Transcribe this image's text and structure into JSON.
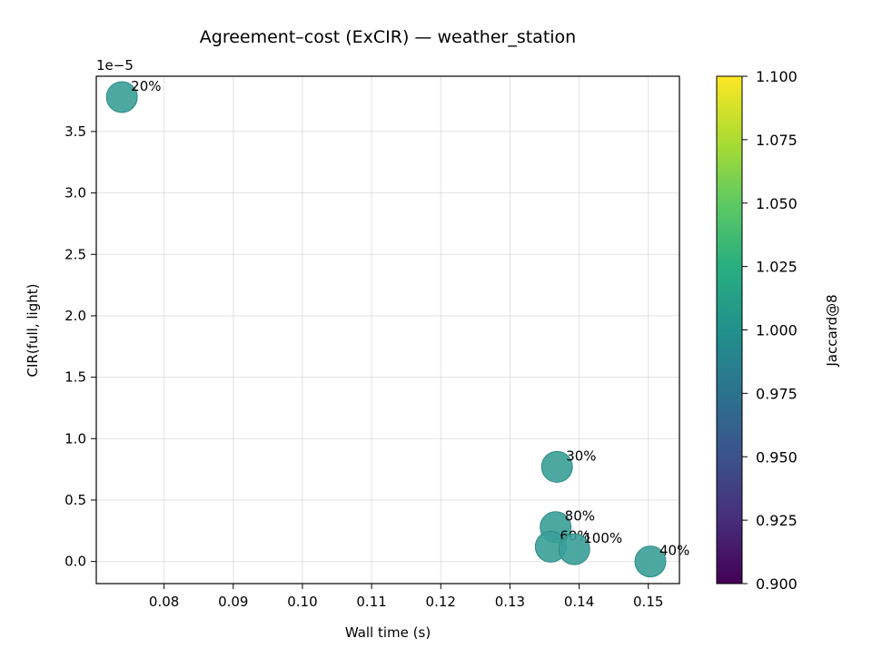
{
  "chart_data": {
    "type": "scatter",
    "title": "Agreement–cost (ExCIR) — weather_station",
    "xlabel": "Wall time (s)",
    "ylabel": "CIR(full, light)",
    "y_offset_label": "1e−5",
    "xlim": [
      0.0702,
      0.1545
    ],
    "ylim": [
      -0.18,
      3.95
    ],
    "y_unit_scale": 1e-05,
    "x_ticks": [
      0.08,
      0.09,
      0.1,
      0.11,
      0.12,
      0.13,
      0.14,
      0.15
    ],
    "x_tick_labels": [
      "0.08",
      "0.09",
      "0.10",
      "0.11",
      "0.12",
      "0.13",
      "0.14",
      "0.15"
    ],
    "y_ticks": [
      0.0,
      0.5,
      1.0,
      1.5,
      2.0,
      2.5,
      3.0,
      3.5
    ],
    "y_tick_labels": [
      "0.0",
      "0.5",
      "1.0",
      "1.5",
      "2.0",
      "2.5",
      "3.0",
      "3.5"
    ],
    "grid": true,
    "points": [
      {
        "label": "20%",
        "x": 0.0739,
        "y": 3.78,
        "color_value": 1.0
      },
      {
        "label": "30%",
        "x": 0.1368,
        "y": 0.77,
        "color_value": 1.0
      },
      {
        "label": "80%",
        "x": 0.1366,
        "y": 0.28,
        "color_value": 1.0
      },
      {
        "label": "60%",
        "x": 0.1359,
        "y": 0.12,
        "color_value": 1.0
      },
      {
        "label": "100%",
        "x": 0.1393,
        "y": 0.1,
        "color_value": 1.0
      },
      {
        "label": "40%",
        "x": 0.1503,
        "y": 0.0,
        "color_value": 1.0
      }
    ],
    "marker_color": "#3a9e98",
    "colorbar": {
      "label": "Jaccard@8",
      "range": [
        0.9,
        1.1
      ],
      "ticks": [
        0.9,
        0.925,
        0.95,
        0.975,
        1.0,
        1.025,
        1.05,
        1.075,
        1.1
      ],
      "tick_labels": [
        "0.900",
        "0.925",
        "0.950",
        "0.975",
        "1.000",
        "1.025",
        "1.050",
        "1.075",
        "1.100"
      ],
      "colormap": "viridis"
    }
  }
}
